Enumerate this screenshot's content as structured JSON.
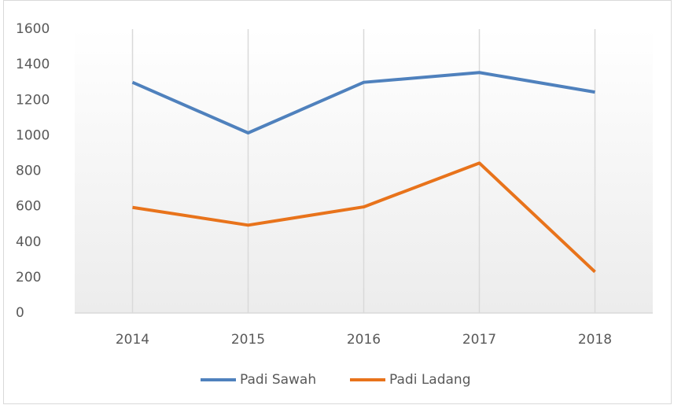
{
  "chart_data": {
    "type": "line",
    "categories": [
      "2014",
      "2015",
      "2016",
      "2017",
      "2018"
    ],
    "series": [
      {
        "name": "Padi Sawah",
        "color": "#4f81bd",
        "values": [
          1300,
          1015,
          1300,
          1355,
          1245
        ]
      },
      {
        "name": "Padi Ladang",
        "color": "#e8731b",
        "values": [
          595,
          495,
          598,
          845,
          232
        ]
      }
    ],
    "ylim": [
      0,
      1600
    ],
    "yticks": [
      0,
      200,
      400,
      600,
      800,
      1000,
      1200,
      1400,
      1600
    ],
    "grid": true,
    "legend": "bottom"
  }
}
